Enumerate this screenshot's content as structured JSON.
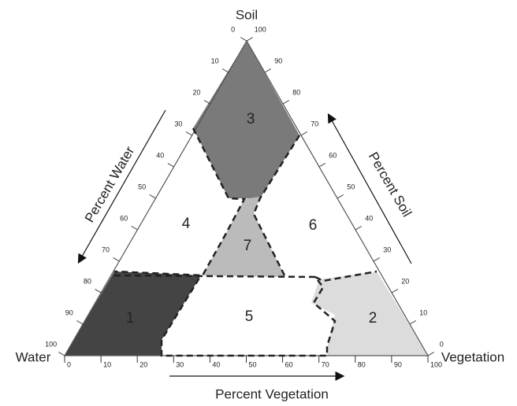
{
  "corners": {
    "top": "Soil",
    "left": "Water",
    "right": "Vegetation"
  },
  "axes": {
    "left": {
      "title": "Percent Water",
      "ticks": [
        0,
        10,
        20,
        30,
        40,
        50,
        60,
        70,
        80,
        90,
        100
      ]
    },
    "right": {
      "title": "Percent Soil",
      "ticks": [
        0,
        10,
        20,
        30,
        40,
        50,
        60,
        70,
        80,
        90,
        100
      ]
    },
    "bottom": {
      "title": "Percent Vegetation",
      "ticks": [
        0,
        10,
        20,
        30,
        40,
        50,
        60,
        70,
        80,
        90,
        100
      ]
    }
  },
  "regions": [
    {
      "label": "1"
    },
    {
      "label": "2"
    },
    {
      "label": "3"
    },
    {
      "label": "4"
    },
    {
      "label": "5"
    },
    {
      "label": "6"
    },
    {
      "label": "7"
    }
  ]
}
